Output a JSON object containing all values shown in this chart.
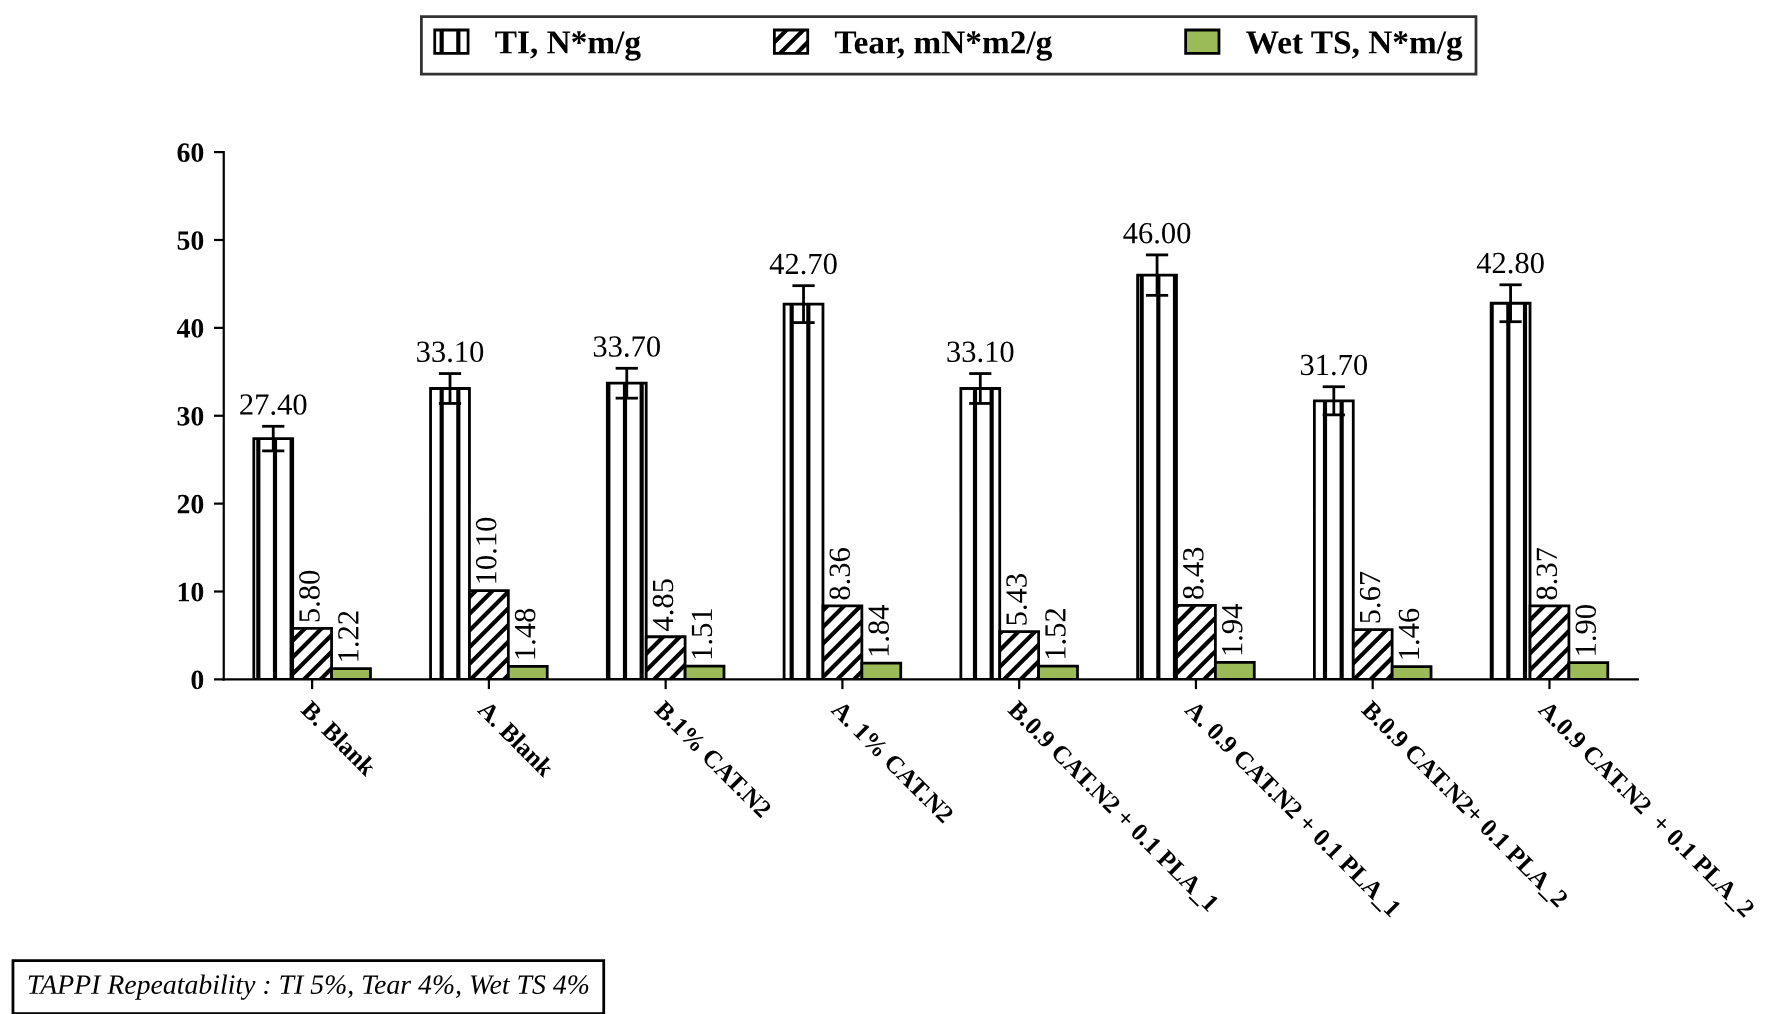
{
  "chart_data": {
    "type": "bar",
    "categories": [
      "B. Blank",
      "A. Blank",
      "B.1% CAT.N2",
      "A. 1% CAT.N2",
      "B.0.9 CAT.N2 + 0.1 PLA_1",
      "A. 0.9 CAT.N2 + 0.1 PLA_1",
      "B.0.9 CAT.N2+ 0.1 PLA_2",
      "A.0.9 CAT.N2  + 0.1 PLA_2"
    ],
    "series": [
      {
        "name": "TI, N*m/g",
        "color": "#000000",
        "values": [
          27.4,
          33.1,
          33.7,
          42.7,
          33.1,
          46.0,
          31.7,
          42.8
        ],
        "errors": [
          1.4,
          1.7,
          1.7,
          2.1,
          1.7,
          2.3,
          1.6,
          2.1
        ],
        "value_labels": [
          "27.40",
          "33.10",
          "33.70",
          "42.70",
          "33.10",
          "46.00",
          "31.70",
          "42.80"
        ]
      },
      {
        "name": "Tear, mN*m2/g",
        "color": "#000000",
        "values": [
          5.8,
          10.1,
          4.85,
          8.36,
          5.43,
          8.43,
          5.67,
          8.37
        ],
        "value_labels": [
          "5.80",
          "10.10",
          "4.85",
          "8.36",
          "5.43",
          "8.43",
          "5.67",
          "8.37"
        ]
      },
      {
        "name": "Wet TS, N*m/g",
        "color": "#9bbb59",
        "values": [
          1.22,
          1.48,
          1.51,
          1.84,
          1.52,
          1.94,
          1.46,
          1.9
        ],
        "value_labels": [
          "1.22",
          "1.48",
          "1.51",
          "1.84",
          "1.52",
          "1.94",
          "1.46",
          "1.90"
        ]
      }
    ],
    "ylim": [
      0,
      60
    ],
    "yticks": [
      0,
      10,
      20,
      30,
      40,
      50,
      60
    ],
    "grid": false,
    "legend": "top",
    "annotations": [
      "TAPPI Repeatability : TI 5%, Tear 4%, Wet TS 4%"
    ]
  }
}
